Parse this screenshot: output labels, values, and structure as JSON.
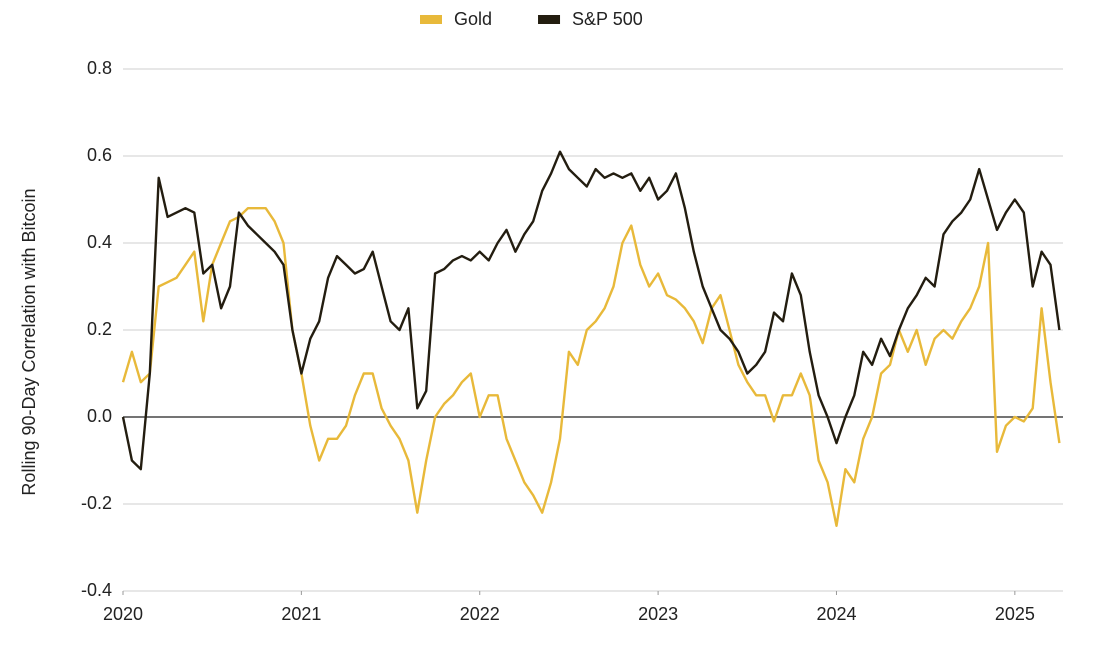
{
  "chart_data": {
    "type": "line",
    "y_label": "Rolling 90-Day Correlation with Bitcoin",
    "x": [
      2020.0,
      2020.05,
      2020.1,
      2020.15,
      2020.2,
      2020.25,
      2020.3,
      2020.35,
      2020.4,
      2020.45,
      2020.5,
      2020.55,
      2020.6,
      2020.65,
      2020.7,
      2020.75,
      2020.8,
      2020.85,
      2020.9,
      2020.95,
      2021.0,
      2021.05,
      2021.1,
      2021.15,
      2021.2,
      2021.25,
      2021.3,
      2021.35,
      2021.4,
      2021.45,
      2021.5,
      2021.55,
      2021.6,
      2021.65,
      2021.7,
      2021.75,
      2021.8,
      2021.85,
      2021.9,
      2021.95,
      2022.0,
      2022.05,
      2022.1,
      2022.15,
      2022.2,
      2022.25,
      2022.3,
      2022.35,
      2022.4,
      2022.45,
      2022.5,
      2022.55,
      2022.6,
      2022.65,
      2022.7,
      2022.75,
      2022.8,
      2022.85,
      2022.9,
      2022.95,
      2023.0,
      2023.05,
      2023.1,
      2023.15,
      2023.2,
      2023.25,
      2023.3,
      2023.35,
      2023.4,
      2023.45,
      2023.5,
      2023.55,
      2023.6,
      2023.65,
      2023.7,
      2023.75,
      2023.8,
      2023.85,
      2023.9,
      2023.95,
      2024.0,
      2024.05,
      2024.1,
      2024.15,
      2024.2,
      2024.25,
      2024.3,
      2024.35,
      2024.4,
      2024.45,
      2024.5,
      2024.55,
      2024.6,
      2024.65,
      2024.7,
      2024.75,
      2024.8,
      2024.85,
      2024.9,
      2024.95,
      2025.0,
      2025.05,
      2025.1,
      2025.15,
      2025.2,
      2025.25
    ],
    "series": [
      {
        "name": "Gold",
        "color": "#e8b93a",
        "values": [
          0.08,
          0.15,
          0.08,
          0.1,
          0.3,
          0.31,
          0.32,
          0.35,
          0.38,
          0.22,
          0.35,
          0.4,
          0.45,
          0.46,
          0.48,
          0.48,
          0.48,
          0.45,
          0.4,
          0.2,
          0.1,
          -0.02,
          -0.1,
          -0.05,
          -0.05,
          -0.02,
          0.05,
          0.1,
          0.1,
          0.02,
          -0.02,
          -0.05,
          -0.1,
          -0.22,
          -0.1,
          0.0,
          0.03,
          0.05,
          0.08,
          0.1,
          0.0,
          0.05,
          0.05,
          -0.05,
          -0.1,
          -0.15,
          -0.18,
          -0.22,
          -0.15,
          -0.05,
          0.15,
          0.12,
          0.2,
          0.22,
          0.25,
          0.3,
          0.4,
          0.44,
          0.35,
          0.3,
          0.33,
          0.28,
          0.27,
          0.25,
          0.22,
          0.17,
          0.25,
          0.28,
          0.2,
          0.12,
          0.08,
          0.05,
          0.05,
          -0.01,
          0.05,
          0.05,
          0.1,
          0.05,
          -0.1,
          -0.15,
          -0.25,
          -0.12,
          -0.15,
          -0.05,
          0.0,
          0.1,
          0.12,
          0.2,
          0.15,
          0.2,
          0.12,
          0.18,
          0.2,
          0.18,
          0.22,
          0.25,
          0.3,
          0.4,
          -0.08,
          -0.02,
          0.0,
          -0.01,
          0.02,
          0.25,
          0.08,
          -0.06
        ]
      },
      {
        "name": "S&P 500",
        "color": "#231d10",
        "values": [
          0.0,
          -0.1,
          -0.12,
          0.1,
          0.55,
          0.46,
          0.47,
          0.48,
          0.47,
          0.33,
          0.35,
          0.25,
          0.3,
          0.47,
          0.44,
          0.42,
          0.4,
          0.38,
          0.35,
          0.2,
          0.1,
          0.18,
          0.22,
          0.32,
          0.37,
          0.35,
          0.33,
          0.34,
          0.38,
          0.3,
          0.22,
          0.2,
          0.25,
          0.02,
          0.06,
          0.33,
          0.34,
          0.36,
          0.37,
          0.36,
          0.38,
          0.36,
          0.4,
          0.43,
          0.38,
          0.42,
          0.45,
          0.52,
          0.56,
          0.61,
          0.57,
          0.55,
          0.53,
          0.57,
          0.55,
          0.56,
          0.55,
          0.56,
          0.52,
          0.55,
          0.5,
          0.52,
          0.56,
          0.48,
          0.38,
          0.3,
          0.25,
          0.2,
          0.18,
          0.15,
          0.1,
          0.12,
          0.15,
          0.24,
          0.22,
          0.33,
          0.28,
          0.15,
          0.05,
          0.0,
          -0.06,
          0.0,
          0.05,
          0.15,
          0.12,
          0.18,
          0.14,
          0.2,
          0.25,
          0.28,
          0.32,
          0.3,
          0.42,
          0.45,
          0.47,
          0.5,
          0.57,
          0.5,
          0.43,
          0.47,
          0.5,
          0.47,
          0.3,
          0.38,
          0.35,
          0.2
        ]
      }
    ],
    "xlim": [
      2020,
      2025.27
    ],
    "xticks": [
      2020,
      2021,
      2022,
      2023,
      2024,
      2025
    ],
    "ylim": [
      -0.4,
      0.8
    ],
    "yticks": [
      0.8,
      0.6,
      0.4,
      0.2,
      {
        "value": 0,
        "label": "0.0"
      },
      -0.2,
      -0.4
    ],
    "grid": true,
    "legend": "top"
  }
}
